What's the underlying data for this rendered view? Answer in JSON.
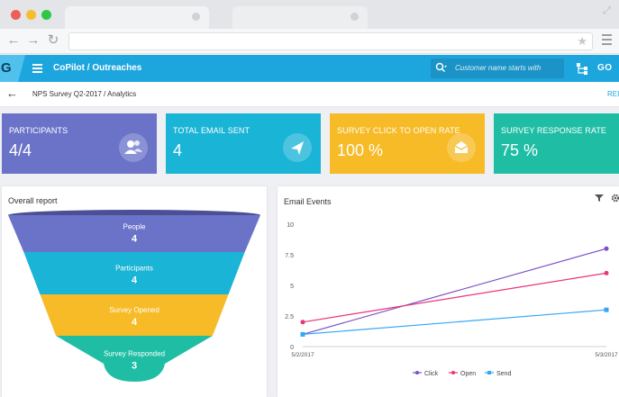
{
  "header": {
    "logo_letter": "G",
    "breadcrumb": "CoPilot / Outreaches",
    "search_placeholder": "Customer name starts with",
    "go_label": "GO"
  },
  "subheader": {
    "title": "NPS Survey Q2-2017 / Analytics",
    "right_link": "REI"
  },
  "kpis": [
    {
      "label": "PARTICIPANTS",
      "value": "4/4",
      "color": "#6b73c9",
      "icon": "users-icon"
    },
    {
      "label": "TOTAL EMAIL SENT",
      "value": "4",
      "color": "#1ab4d6",
      "icon": "send-icon"
    },
    {
      "label": "SURVEY CLICK TO OPEN RATE",
      "value": "100 %",
      "color": "#f6bb26",
      "icon": "envelope-open-icon"
    },
    {
      "label": "SURVEY RESPONSE RATE",
      "value": "75 %",
      "color": "#1fbea4",
      "icon": ""
    }
  ],
  "overall_report": {
    "title": "Overall report",
    "stages": [
      {
        "name": "People",
        "value": "4",
        "color": "#6b73c9"
      },
      {
        "name": "Participants",
        "value": "4",
        "color": "#1ab4d6"
      },
      {
        "name": "Survey Opened",
        "value": "4",
        "color": "#f6bb26"
      },
      {
        "name": "Survey Responded",
        "value": "3",
        "color": "#1fbea4"
      }
    ]
  },
  "email_events": {
    "title": "Email Events"
  },
  "chart_data": {
    "type": "line",
    "categories": [
      "5/2/2017",
      "5/3/2017"
    ],
    "ylim": [
      0,
      10
    ],
    "yticks": [
      "0",
      "2.5",
      "5",
      "7.5",
      "10"
    ],
    "legend_position": "bottom",
    "grid": false,
    "series": [
      {
        "name": "Click",
        "values": [
          1,
          8
        ],
        "color": "#7a4fc9"
      },
      {
        "name": "Open",
        "values": [
          2,
          6
        ],
        "color": "#e8357a"
      },
      {
        "name": "Send",
        "values": [
          1,
          3
        ],
        "color": "#36a8f2"
      }
    ]
  }
}
